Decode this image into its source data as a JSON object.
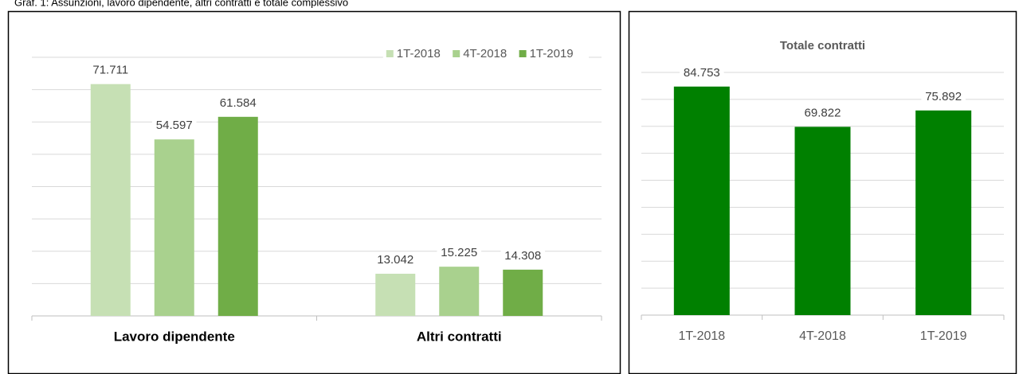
{
  "caption": "Graf. 1: Assunzioni, lavoro dipendente, altri contratti e totale complessivo",
  "chart_data": [
    {
      "type": "bar",
      "categories": [
        "Lavoro dipendente",
        "Altri contratti"
      ],
      "series": [
        {
          "name": "1T-2018",
          "color": "#c6e0b4",
          "values": [
            71711,
            13042
          ],
          "value_labels": [
            "71.711",
            "13.042"
          ]
        },
        {
          "name": "4T-2018",
          "color": "#a9d18e",
          "values": [
            54597,
            15225
          ],
          "value_labels": [
            "54.597",
            "15.225"
          ]
        },
        {
          "name": "1T-2019",
          "color": "#70ad47",
          "values": [
            61584,
            14308
          ],
          "value_labels": [
            "61.584",
            "14.308"
          ]
        }
      ],
      "ylim": [
        0,
        80000
      ],
      "yticks": [
        0,
        10000,
        20000,
        30000,
        40000,
        50000,
        60000,
        70000,
        80000
      ],
      "grid": true,
      "legend": "top-right"
    },
    {
      "type": "bar",
      "title": "Totale contratti",
      "categories": [
        "1T-2018",
        "4T-2018",
        "1T-2019"
      ],
      "values": [
        84753,
        69822,
        75892
      ],
      "value_labels": [
        "84.753",
        "69.822",
        "75.892"
      ],
      "color": "#008000",
      "ylim": [
        0,
        90000
      ],
      "yticks": [
        0,
        10000,
        20000,
        30000,
        40000,
        50000,
        60000,
        70000,
        80000,
        90000
      ],
      "grid": true
    }
  ]
}
